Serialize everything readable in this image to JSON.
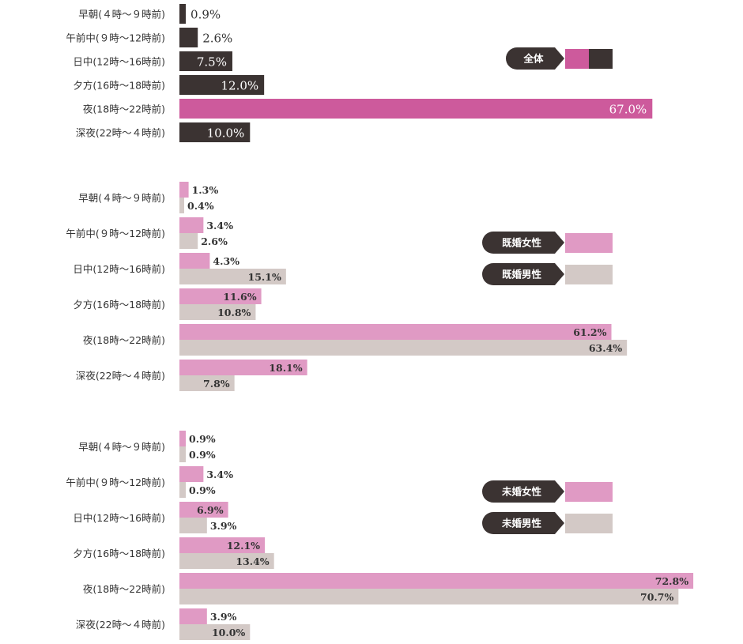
{
  "chart_data": [
    {
      "type": "bar",
      "orientation": "horizontal",
      "categories": [
        "早朝(４時～９時前)",
        "午前中(９時～12時前)",
        "日中(12時～16時前)",
        "夕方(16時～18時前)",
        "夜(18時～22時前)",
        "深夜(22時～４時前)"
      ],
      "series": [
        {
          "name": "全体",
          "values": [
            0.9,
            2.6,
            7.5,
            12.0,
            67.0,
            10.0
          ],
          "labels": [
            "0.9%",
            "2.6%",
            "7.5%",
            "12.0%",
            "67.0%",
            "10.0%"
          ]
        }
      ],
      "highlight_index": 4,
      "colors": {
        "bar": "#3b3332",
        "highlight": "#cd5a9c"
      },
      "legend": {
        "label": "全体",
        "placement": "right",
        "swatches": [
          "#cd5a9c",
          "#3b3332"
        ]
      }
    },
    {
      "type": "bar",
      "orientation": "horizontal",
      "categories": [
        "早朝(４時～９時前)",
        "午前中(９時～12時前)",
        "日中(12時～16時前)",
        "夕方(16時～18時前)",
        "夜(18時～22時前)",
        "深夜(22時～４時前)"
      ],
      "series": [
        {
          "name": "既婚女性",
          "values": [
            1.3,
            3.4,
            4.3,
            11.6,
            61.2,
            18.1
          ],
          "labels": [
            "1.3%",
            "3.4%",
            "4.3%",
            "11.6%",
            "61.2%",
            "18.1%"
          ],
          "color": "#e09ac4"
        },
        {
          "name": "既婚男性",
          "values": [
            0.4,
            2.6,
            15.1,
            10.8,
            63.4,
            7.8
          ],
          "labels": [
            "0.4%",
            "2.6%",
            "15.1%",
            "10.8%",
            "63.4%",
            "7.8%"
          ],
          "color": "#d3c9c6"
        }
      ],
      "legend": {
        "placement": "right"
      }
    },
    {
      "type": "bar",
      "orientation": "horizontal",
      "categories": [
        "早朝(４時～９時前)",
        "午前中(９時～12時前)",
        "日中(12時～16時前)",
        "夕方(16時～18時前)",
        "夜(18時～22時前)",
        "深夜(22時～４時前)"
      ],
      "series": [
        {
          "name": "未婚女性",
          "values": [
            0.9,
            3.4,
            6.9,
            12.1,
            72.8,
            3.9
          ],
          "labels": [
            "0.9%",
            "3.4%",
            "6.9%",
            "12.1%",
            "72.8%",
            "3.9%"
          ],
          "color": "#e09ac4"
        },
        {
          "name": "未婚男性",
          "values": [
            0.9,
            0.9,
            3.9,
            13.4,
            70.7,
            10.0
          ],
          "labels": [
            "0.9%",
            "0.9%",
            "3.9%",
            "13.4%",
            "70.7%",
            "10.0%"
          ],
          "color": "#d3c9c6"
        }
      ],
      "legend": {
        "placement": "right"
      }
    }
  ],
  "colors": {
    "legend_bubble": "#3b3332",
    "label_text": "#333333"
  }
}
